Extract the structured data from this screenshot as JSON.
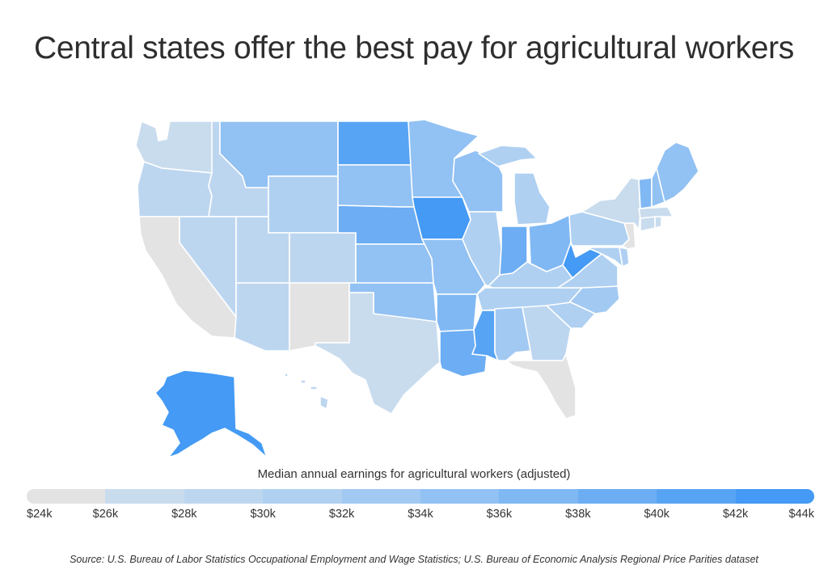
{
  "title": "Central states offer the best pay for agricultural workers",
  "legend": {
    "title": "Median annual earnings for agricultural workers (adjusted)",
    "ticks": [
      "$24k",
      "$26k",
      "$28k",
      "$30k",
      "$32k",
      "$34k",
      "$36k",
      "$38k",
      "$40k",
      "$42k",
      "$44k"
    ],
    "colors": [
      "#e3e3e3",
      "#c9dcee",
      "#bdd6f0",
      "#afd0f1",
      "#a2c9f2",
      "#92c1f3",
      "#80b8f3",
      "#6cadf3",
      "#58a4f4",
      "#449af4"
    ]
  },
  "source": "Source:  U.S. Bureau of Labor Statistics Occupational Employment and Wage Statistics; U.S. Bureau of Economic Analysis Regional Price Parities dataset",
  "states": [
    {
      "name": "Washington",
      "level": 1
    },
    {
      "name": "Oregon",
      "level": 2
    },
    {
      "name": "California",
      "level": 0
    },
    {
      "name": "Idaho",
      "level": 2
    },
    {
      "name": "Nevada",
      "level": 2
    },
    {
      "name": "Montana",
      "level": 5
    },
    {
      "name": "Wyoming",
      "level": 3
    },
    {
      "name": "Utah",
      "level": 2
    },
    {
      "name": "Colorado",
      "level": 2
    },
    {
      "name": "Arizona",
      "level": 2
    },
    {
      "name": "New Mexico",
      "level": 0
    },
    {
      "name": "North Dakota",
      "level": 8
    },
    {
      "name": "South Dakota",
      "level": 5
    },
    {
      "name": "Nebraska",
      "level": 7
    },
    {
      "name": "Kansas",
      "level": 5
    },
    {
      "name": "Oklahoma",
      "level": 5
    },
    {
      "name": "Texas",
      "level": 1
    },
    {
      "name": "Minnesota",
      "level": 5
    },
    {
      "name": "Iowa",
      "level": 9
    },
    {
      "name": "Missouri",
      "level": 5
    },
    {
      "name": "Arkansas",
      "level": 6
    },
    {
      "name": "Louisiana",
      "level": 7
    },
    {
      "name": "Wisconsin",
      "level": 5
    },
    {
      "name": "Illinois",
      "level": 3
    },
    {
      "name": "Michigan",
      "level": 3
    },
    {
      "name": "Indiana",
      "level": 7
    },
    {
      "name": "Ohio",
      "level": 6
    },
    {
      "name": "Kentucky",
      "level": 3
    },
    {
      "name": "Tennessee",
      "level": 3
    },
    {
      "name": "Mississippi",
      "level": 8
    },
    {
      "name": "Alabama",
      "level": 4
    },
    {
      "name": "Georgia",
      "level": 2
    },
    {
      "name": "Florida",
      "level": 0
    },
    {
      "name": "South Carolina",
      "level": 3
    },
    {
      "name": "North Carolina",
      "level": 4
    },
    {
      "name": "Virginia",
      "level": 3
    },
    {
      "name": "West Virginia",
      "level": 9
    },
    {
      "name": "Pennsylvania",
      "level": 3
    },
    {
      "name": "New York",
      "level": 1
    },
    {
      "name": "Maryland",
      "level": 3
    },
    {
      "name": "Delaware",
      "level": 3
    },
    {
      "name": "New Jersey",
      "level": 0
    },
    {
      "name": "Connecticut",
      "level": 1
    },
    {
      "name": "Rhode Island",
      "level": 1
    },
    {
      "name": "Massachusetts",
      "level": 1
    },
    {
      "name": "Vermont",
      "level": 6
    },
    {
      "name": "New Hampshire",
      "level": 5
    },
    {
      "name": "Maine",
      "level": 5
    },
    {
      "name": "Alaska",
      "level": 9
    },
    {
      "name": "Hawaii",
      "level": 2
    }
  ]
}
